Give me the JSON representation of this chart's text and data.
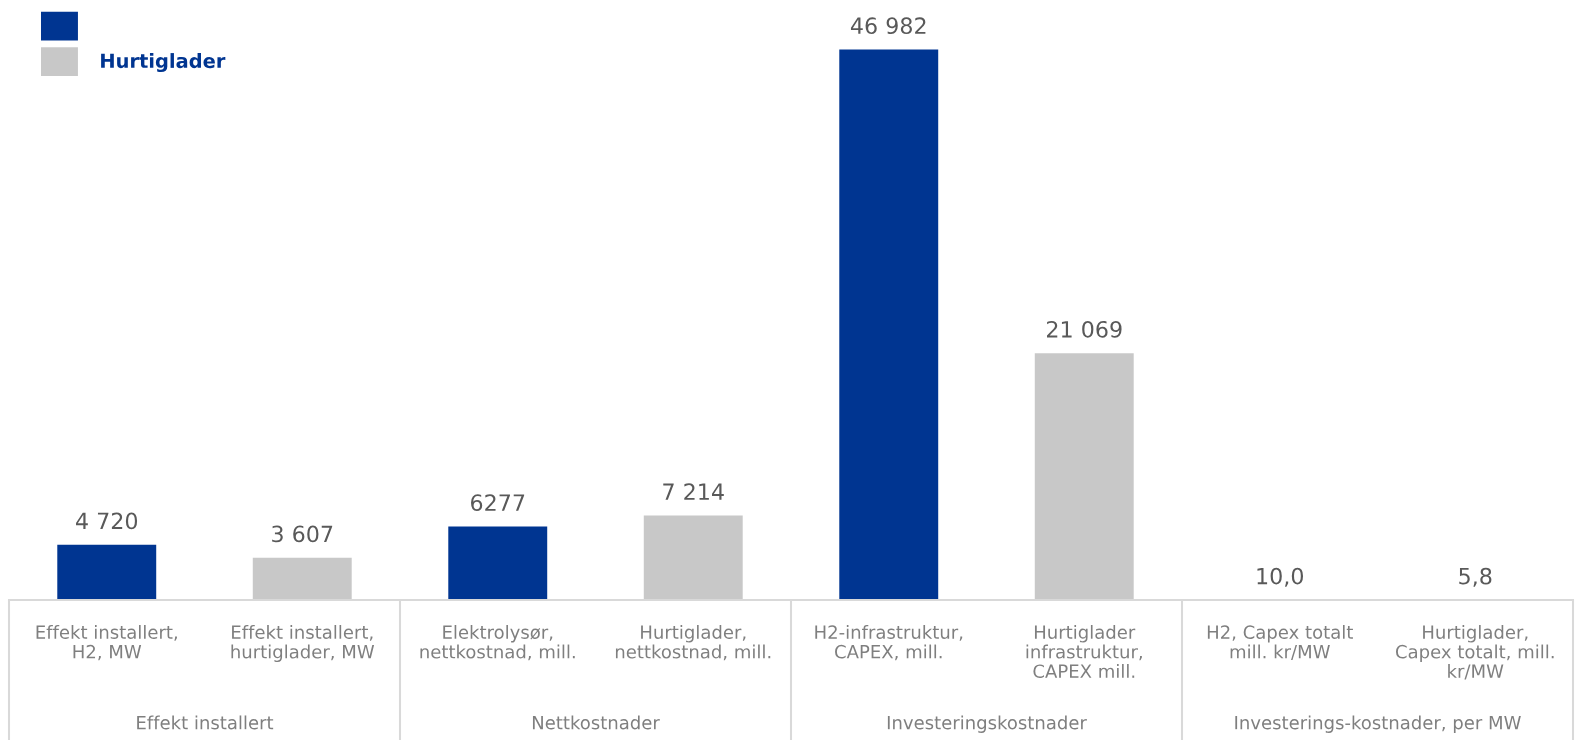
{
  "chart_data": {
    "type": "bar",
    "stacked": true,
    "tick_labels": "x",
    "legend": "top left",
    "grid": false,
    "categories": [
      "Effekt installert,\nH2, MW",
      "Effekt installert,\nhurtiglader, MW",
      "Elektrolysør,\nnettkostnad, mill.",
      "Hurtiglader,\nnettkostnad, mill.",
      "H2-infrastruktur,\nCAPEX, mill.",
      "Hurtiglader\ninfrastruktur,\nCAPEX mill.",
      "H2, Capex totalt\nmill. kr/MW",
      "Hurtiglader,\nCapex totalt, mill.\nkr/MW"
    ],
    "series": [
      {
        "color": "#003591",
        "values": [
          4720,
          null,
          6277,
          null,
          46982,
          null,
          10.0,
          null
        ],
        "value_labels": [
          "4 720",
          null,
          "6277",
          null,
          "46 982",
          null,
          "10,0",
          null
        ]
      },
      {
        "name": "Hurtiglader",
        "color": "#c8c8c8",
        "values": [
          null,
          3607,
          null,
          7214,
          null,
          21069,
          null,
          5.8
        ],
        "value_labels": [
          null,
          "3 607",
          null,
          "7 214",
          null,
          "21 069",
          null,
          "5,8"
        ]
      }
    ],
    "annotations": [
      "Effekt installert",
      "Nettkostnader",
      "Investeringskostnader",
      "Investerings-kostnader, per MW"
    ]
  }
}
